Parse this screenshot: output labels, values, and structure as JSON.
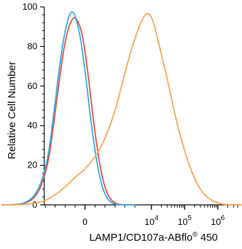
{
  "chart_data": {
    "type": "line",
    "title": "",
    "xlabel": {
      "prefix": "LAMP1/CD107a-ABflo",
      "superscript": "®",
      "suffix": " 450"
    },
    "ylabel": "Relative Cell Number",
    "x_scale": "biexponential",
    "ylim": [
      0,
      100
    ],
    "y_ticks": [
      0,
      20,
      40,
      60,
      80,
      100
    ],
    "x_ticks": [
      {
        "base": "0",
        "exp": ""
      },
      {
        "base": "10",
        "exp": "4"
      },
      {
        "base": "10",
        "exp": "5"
      },
      {
        "base": "10",
        "exp": "6"
      }
    ],
    "grid": false,
    "legend": "none",
    "series": [
      {
        "color": "#e8463a",
        "points": [
          [
            -2.5,
            0
          ],
          [
            -2.2,
            0
          ],
          [
            -1.9,
            0.5
          ],
          [
            -1.7,
            1.5
          ],
          [
            -1.5,
            4
          ],
          [
            -1.3,
            10
          ],
          [
            -1.1,
            22
          ],
          [
            -0.95,
            40
          ],
          [
            -0.8,
            60
          ],
          [
            -0.65,
            78
          ],
          [
            -0.5,
            90
          ],
          [
            -0.35,
            95
          ],
          [
            -0.25,
            94
          ],
          [
            -0.1,
            88
          ],
          [
            0.05,
            72
          ],
          [
            0.2,
            50
          ],
          [
            0.35,
            30
          ],
          [
            0.5,
            15
          ],
          [
            0.65,
            6
          ],
          [
            0.8,
            2
          ],
          [
            0.95,
            0.5
          ],
          [
            1.1,
            0
          ],
          [
            1.5,
            0
          ]
        ]
      },
      {
        "color": "#29abe2",
        "points": [
          [
            -2.5,
            0
          ],
          [
            -2.2,
            0
          ],
          [
            -1.9,
            0.5
          ],
          [
            -1.7,
            2
          ],
          [
            -1.5,
            5
          ],
          [
            -1.3,
            12
          ],
          [
            -1.1,
            25
          ],
          [
            -0.95,
            45
          ],
          [
            -0.8,
            66
          ],
          [
            -0.65,
            84
          ],
          [
            -0.5,
            95
          ],
          [
            -0.4,
            98
          ],
          [
            -0.3,
            96
          ],
          [
            -0.15,
            86
          ],
          [
            0,
            68
          ],
          [
            0.15,
            46
          ],
          [
            0.3,
            27
          ],
          [
            0.45,
            13
          ],
          [
            0.6,
            5
          ],
          [
            0.75,
            1.5
          ],
          [
            0.9,
            0.3
          ],
          [
            1.05,
            0
          ],
          [
            1.5,
            0
          ]
        ]
      },
      {
        "color": "#f7a24a",
        "points": [
          [
            -2.5,
            0
          ],
          [
            -2.0,
            0
          ],
          [
            -1.6,
            0.5
          ],
          [
            -1.2,
            2
          ],
          [
            -0.9,
            5
          ],
          [
            -0.6,
            9
          ],
          [
            -0.3,
            14
          ],
          [
            0,
            18
          ],
          [
            0.3,
            24
          ],
          [
            0.6,
            33
          ],
          [
            0.9,
            47
          ],
          [
            1.1,
            60
          ],
          [
            1.3,
            73
          ],
          [
            1.5,
            84
          ],
          [
            1.65,
            91
          ],
          [
            1.8,
            96
          ],
          [
            1.9,
            97
          ],
          [
            2.0,
            95
          ],
          [
            2.1,
            90
          ],
          [
            2.3,
            76
          ],
          [
            2.5,
            62
          ],
          [
            2.7,
            46
          ],
          [
            2.9,
            33
          ],
          [
            3.1,
            22
          ],
          [
            3.3,
            13
          ],
          [
            3.5,
            7
          ],
          [
            3.7,
            3.5
          ],
          [
            3.9,
            1.5
          ],
          [
            4.1,
            0.5
          ],
          [
            4.3,
            0
          ],
          [
            5,
            0
          ],
          [
            7,
            0
          ]
        ]
      }
    ]
  }
}
